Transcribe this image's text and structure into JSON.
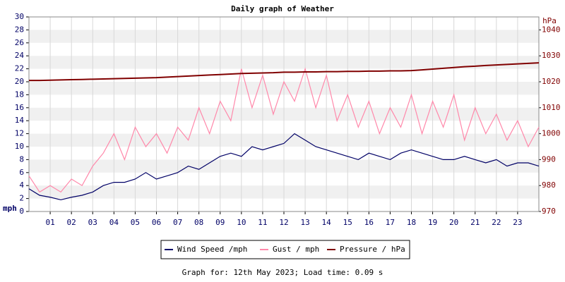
{
  "chart_data": {
    "type": "line",
    "title": "Daily graph of Weather",
    "y_label": "mph",
    "y2_label": "hPa",
    "footer": "Graph for: 12th May 2023; Load time: 0.09 s",
    "x": [
      0,
      0.5,
      1,
      1.5,
      2,
      2.5,
      3,
      3.5,
      4,
      4.5,
      5,
      5.5,
      6,
      6.5,
      7,
      7.5,
      8,
      8.5,
      9,
      9.5,
      10,
      10.5,
      11,
      11.5,
      12,
      12.5,
      13,
      13.5,
      14,
      14.5,
      15,
      15.5,
      16,
      16.5,
      17,
      17.5,
      18,
      18.5,
      19,
      19.5,
      20,
      20.5,
      21,
      21.5,
      22,
      22.5,
      23,
      23.5,
      24
    ],
    "xlim": [
      0,
      24
    ],
    "xticks": [
      {
        "value": 1,
        "label": "01"
      },
      {
        "value": 2,
        "label": "02"
      },
      {
        "value": 3,
        "label": "03"
      },
      {
        "value": 4,
        "label": "04"
      },
      {
        "value": 5,
        "label": "05"
      },
      {
        "value": 6,
        "label": "06"
      },
      {
        "value": 7,
        "label": "07"
      },
      {
        "value": 8,
        "label": "08"
      },
      {
        "value": 9,
        "label": "09"
      },
      {
        "value": 10,
        "label": "10"
      },
      {
        "value": 11,
        "label": "11"
      },
      {
        "value": 12,
        "label": "12"
      },
      {
        "value": 13,
        "label": "13"
      },
      {
        "value": 14,
        "label": "14"
      },
      {
        "value": 15,
        "label": "15"
      },
      {
        "value": 16,
        "label": "16"
      },
      {
        "value": 17,
        "label": "17"
      },
      {
        "value": 18,
        "label": "18"
      },
      {
        "value": 19,
        "label": "19"
      },
      {
        "value": 20,
        "label": "20"
      },
      {
        "value": 21,
        "label": "21"
      },
      {
        "value": 22,
        "label": "22"
      },
      {
        "value": 23,
        "label": "23"
      }
    ],
    "ylim": [
      0,
      30
    ],
    "yticks": [
      0,
      2,
      4,
      6,
      8,
      10,
      12,
      14,
      16,
      18,
      20,
      22,
      24,
      26,
      28,
      30
    ],
    "y2lim": [
      970,
      1045
    ],
    "y2ticks": [
      970,
      980,
      990,
      1000,
      1010,
      1020,
      1030,
      1040
    ],
    "grid": true,
    "series": [
      {
        "name": "Gust / mph",
        "color": "#ff88aa",
        "values": [
          5.5,
          3,
          4,
          3,
          5,
          4,
          7,
          9,
          12,
          8,
          13,
          10,
          12,
          9,
          13,
          11,
          16,
          12,
          17,
          14,
          22,
          16,
          21,
          15,
          20,
          17,
          22,
          16,
          21,
          14,
          18,
          13,
          17,
          12,
          16,
          13,
          18,
          12,
          17,
          13,
          18,
          11,
          16,
          12,
          15,
          11,
          14,
          10,
          13
        ]
      },
      {
        "name": "Wind Speed /mph",
        "color": "#000066",
        "values": [
          3.5,
          2.5,
          2.2,
          1.8,
          2.2,
          2.5,
          3,
          4,
          4.5,
          4.5,
          5,
          6,
          5,
          5.5,
          6,
          7,
          6.5,
          7.5,
          8.5,
          9,
          8.5,
          10,
          9.5,
          10,
          10.5,
          12,
          11,
          10,
          9.5,
          9,
          8.5,
          8,
          9,
          8.5,
          8,
          9,
          9.5,
          9,
          8.5,
          8,
          8,
          8.5,
          8,
          7.5,
          8,
          7,
          7.5,
          7.5,
          7
        ]
      },
      {
        "name": "Pressure / hPa",
        "color": "#800000",
        "axis": "y2",
        "values": [
          1020.5,
          1020.5,
          1020.6,
          1020.7,
          1020.8,
          1020.9,
          1021.0,
          1021.1,
          1021.2,
          1021.3,
          1021.4,
          1021.5,
          1021.6,
          1021.8,
          1022.0,
          1022.2,
          1022.4,
          1022.6,
          1022.8,
          1023.0,
          1023.2,
          1023.3,
          1023.4,
          1023.5,
          1023.7,
          1023.7,
          1023.8,
          1023.8,
          1023.9,
          1023.9,
          1024.0,
          1024.0,
          1024.1,
          1024.1,
          1024.2,
          1024.2,
          1024.3,
          1024.6,
          1024.9,
          1025.2,
          1025.5,
          1025.8,
          1026.0,
          1026.3,
          1026.5,
          1026.7,
          1026.9,
          1027.1,
          1027.3
        ]
      }
    ]
  }
}
